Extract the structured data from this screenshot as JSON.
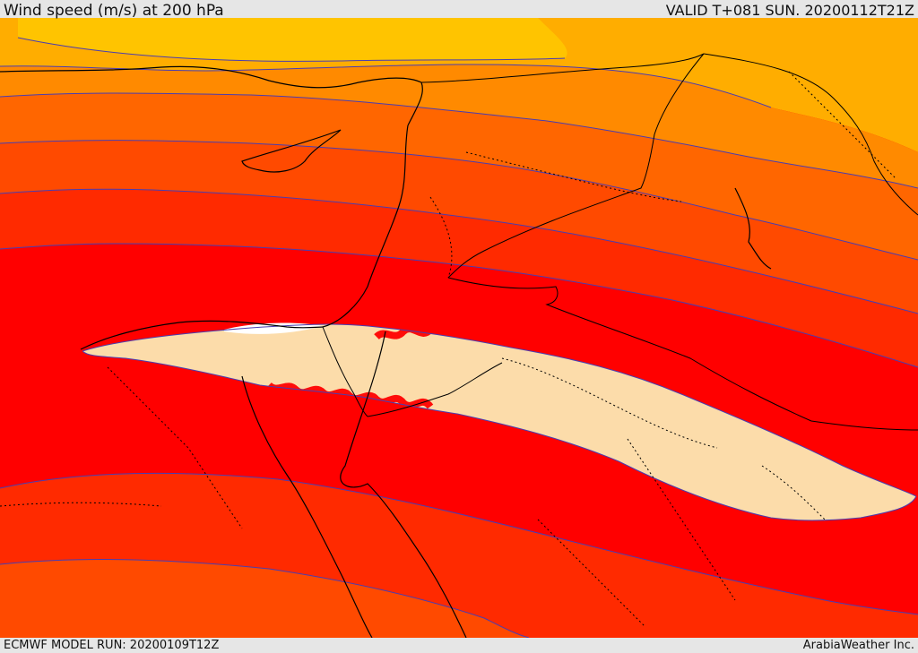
{
  "header": {
    "title": "Wind speed (m/s) at 200 hPa",
    "valid_time": "VALID T+081 SUN. 20200112T21Z"
  },
  "footer": {
    "model_run": "ECMWF MODEL RUN: 20200109T12Z",
    "credit": "ArabiaWeather Inc."
  },
  "map": {
    "region": "Eastern Mediterranean / Levant / Egypt / Arabia",
    "field": "wind speed",
    "level": "200 hPa",
    "palette": {
      "light_yellow": "#ffc400",
      "gold": "#ffad00",
      "orange": "#ff8a00",
      "deep_orange": "#ff6600",
      "red_orange": "#ff4a00",
      "orange_red": "#ff2a00",
      "red": "#ff0000",
      "jet_core": "#fcdcaa",
      "isotach_line": "#4a3db0",
      "coastline": "#000000",
      "borders": "#000000"
    }
  }
}
